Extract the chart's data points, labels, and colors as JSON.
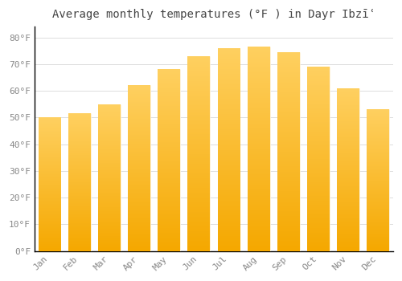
{
  "title": "Average monthly temperatures (°F ) in Dayr Ibzīʿ",
  "months": [
    "Jan",
    "Feb",
    "Mar",
    "Apr",
    "May",
    "Jun",
    "Jul",
    "Aug",
    "Sep",
    "Oct",
    "Nov",
    "Dec"
  ],
  "values": [
    50,
    51.5,
    55,
    62,
    68,
    73,
    76,
    76.5,
    74.5,
    69,
    61,
    53
  ],
  "bar_color_light": "#FFD060",
  "bar_color_dark": "#F5A800",
  "background_color": "#FFFFFF",
  "grid_color": "#DDDDDD",
  "yticks": [
    0,
    10,
    20,
    30,
    40,
    50,
    60,
    70,
    80
  ],
  "ylim": [
    0,
    84
  ],
  "font_color": "#888888",
  "title_fontsize": 10,
  "tick_fontsize": 8,
  "bar_width": 0.75
}
